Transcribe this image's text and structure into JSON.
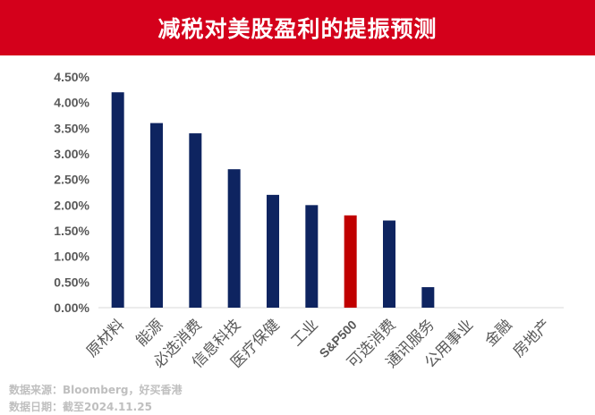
{
  "title": "减税对美股盈利的提振预测",
  "colors": {
    "title_bg": "#d4001b",
    "bar": "#0e2460",
    "highlight": "#c00000",
    "axis_text": "#595959",
    "grid": "#d9d9d9"
  },
  "chart_data": {
    "type": "bar",
    "title": "",
    "xlabel": "",
    "ylabel": "",
    "categories": [
      "原材料",
      "能源",
      "必选消费",
      "信息科技",
      "医疗保健",
      "工业",
      "S&P500",
      "可选消费",
      "通讯服务",
      "公用事业",
      "金融",
      "房地产"
    ],
    "values": [
      4.2,
      3.6,
      3.4,
      2.7,
      2.2,
      2.0,
      1.8,
      1.7,
      0.4,
      0,
      0,
      0
    ],
    "highlight_category": "S&P500",
    "ylim": [
      0,
      4.5
    ],
    "yticks": [
      "0.00%",
      "0.50%",
      "1.00%",
      "1.50%",
      "2.00%",
      "2.50%",
      "3.00%",
      "3.50%",
      "4.00%",
      "4.50%"
    ],
    "grid": false,
    "legend": "none"
  },
  "footer": {
    "source": "数据来源：Bloomberg，好买香港",
    "date": "数据日期：截至2024.11.25"
  }
}
